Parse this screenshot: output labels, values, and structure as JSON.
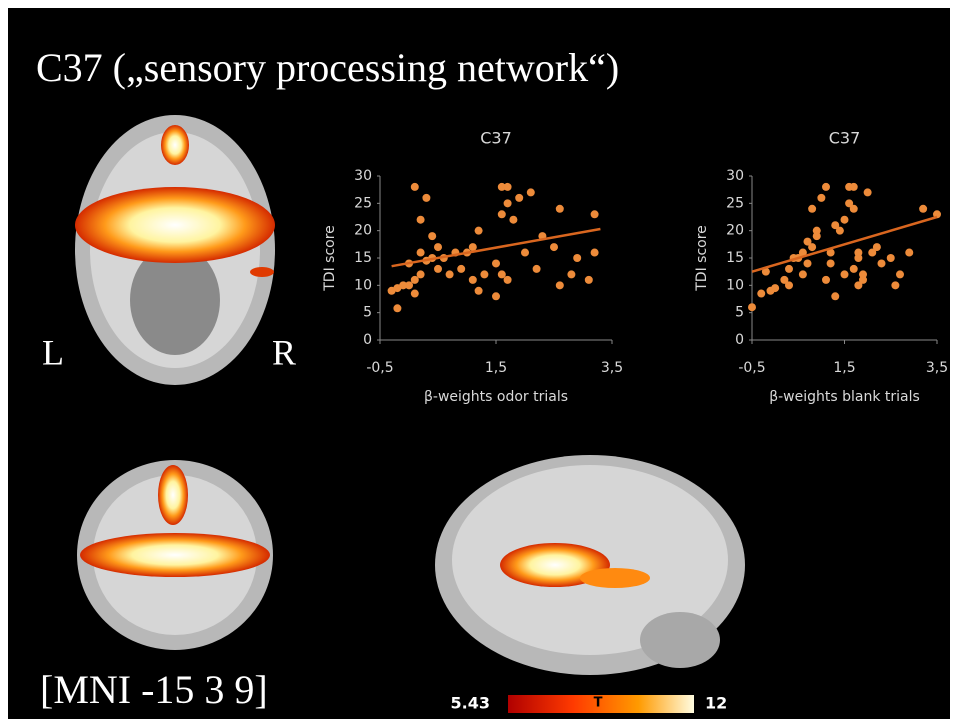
{
  "title": "C37 („sensory processing network“)",
  "axial_labels": {
    "left": "L",
    "right": "R"
  },
  "coordinates": "[MNI -15   3   9]",
  "colorbar": {
    "min": "5.43",
    "label": "T",
    "max": "12"
  },
  "chart_data": [
    {
      "type": "scatter",
      "title": "C37",
      "xlabel": "β-weights odor trials",
      "ylabel": "TDI score",
      "color": "#ed8b3a",
      "xlim": [
        -0.5,
        3.5
      ],
      "ylim": [
        0,
        30
      ],
      "xticks": [
        {
          "value": -0.5,
          "label": "-0,5"
        },
        {
          "value": 1.5,
          "label": "1,5"
        },
        {
          "value": 3.5,
          "label": "3,5"
        }
      ],
      "yticks": [
        0,
        5,
        10,
        15,
        20,
        25,
        30
      ],
      "x": [
        -0.2,
        -0.3,
        -0.2,
        0,
        0.1,
        -0.1,
        0.2,
        0.1,
        0,
        0.3,
        0.4,
        0.2,
        0.5,
        0.5,
        0.4,
        0.2,
        0.3,
        0.1,
        0.6,
        0.8,
        0.9,
        1,
        1.1,
        1.2,
        1.1,
        1.3,
        1.5,
        1.5,
        1.6,
        1.7,
        1.6,
        1.6,
        1.7,
        1.7,
        1.8,
        1.9,
        2.1,
        2,
        2.2,
        2.3,
        2.5,
        2.6,
        2.6,
        2.8,
        2.9,
        3.1,
        3.2,
        3.2,
        1.2,
        0.7
      ],
      "y": [
        5.8,
        9,
        9.5,
        10,
        11,
        10,
        12,
        8.5,
        14,
        14.5,
        15,
        16,
        17,
        13,
        19,
        22,
        26,
        28,
        15,
        16,
        13,
        16,
        17,
        20,
        11,
        12,
        8,
        14,
        12,
        11,
        23,
        28,
        28,
        25,
        22,
        26,
        27,
        16,
        13,
        19,
        17,
        24,
        10,
        12,
        15,
        11,
        16,
        23,
        9,
        12
      ],
      "trendline": {
        "color": "#d9661f",
        "x": [
          -0.3,
          3.3
        ],
        "y": [
          13.5,
          20.3
        ]
      }
    },
    {
      "type": "scatter",
      "title": "C37",
      "xlabel": "β-weights blank trials",
      "ylabel": "TDI score",
      "color": "#ed8b3a",
      "xlim": [
        -0.5,
        3.5
      ],
      "ylim": [
        0,
        30
      ],
      "xticks": [
        {
          "value": -0.5,
          "label": "-0,5"
        },
        {
          "value": 1.5,
          "label": "1,5"
        },
        {
          "value": 3.5,
          "label": "3,5"
        }
      ],
      "yticks": [
        0,
        5,
        10,
        15,
        20,
        25,
        30
      ],
      "x": [
        -0.5,
        -0.3,
        -0.1,
        0,
        -0.2,
        0.2,
        0.3,
        0.3,
        0.5,
        0.6,
        0.7,
        0.6,
        0.7,
        0.8,
        0.8,
        0.9,
        0.9,
        1,
        1.1,
        1.1,
        1.2,
        1.3,
        1.4,
        1.5,
        1.5,
        1.6,
        1.6,
        1.7,
        1.7,
        1.8,
        1.8,
        1.7,
        1.8,
        1.9,
        2,
        2.2,
        2.3,
        2.5,
        2.6,
        2.7,
        2.9,
        3.2,
        3.5,
        1.2,
        0.4,
        1.3,
        1.9,
        2.1
      ],
      "y": [
        6,
        8.5,
        9,
        9.5,
        12.5,
        11,
        10,
        13,
        15,
        16,
        14,
        12,
        18,
        17,
        24,
        19,
        20,
        26,
        28,
        11,
        14,
        8,
        20,
        22,
        12,
        28,
        25,
        28,
        24,
        16,
        15,
        13,
        10,
        12,
        27,
        17,
        14,
        15,
        10,
        12,
        16,
        24,
        23,
        16,
        15,
        21,
        11,
        16
      ],
      "trendline": {
        "color": "#d9661f",
        "x": [
          -0.5,
          3.5
        ],
        "y": [
          12.5,
          22.5
        ]
      }
    }
  ]
}
